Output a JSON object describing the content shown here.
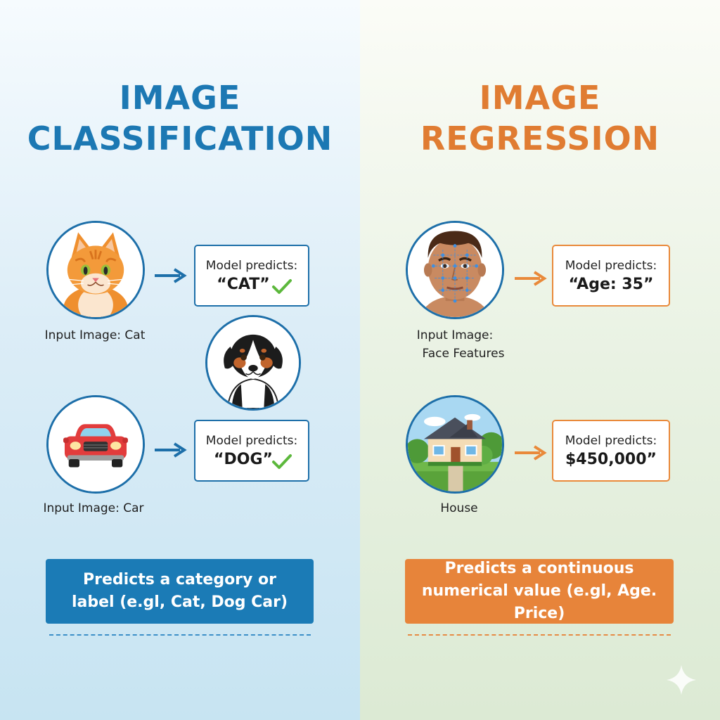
{
  "classification": {
    "title_line1": "IMAGE",
    "title_line2": "CLASSIFICATION",
    "example_cat": {
      "icon": "cat-icon",
      "caption": "Input Image: Cat",
      "predict_label": "Model predicts:",
      "predict_value": "“CAT”"
    },
    "example_dog": {
      "icon": "dog-icon"
    },
    "example_car": {
      "icon": "car-icon",
      "caption": "Input Image: Car",
      "predict_label": "Model predicts:",
      "predict_value": "“DOG”"
    },
    "summary_line1": "Predicts a category or",
    "summary_line2": "label (e.gl, Cat, Dog Car)"
  },
  "regression": {
    "title_line1": "IMAGE",
    "title_line2": "REGRESSION",
    "example_face": {
      "icon": "face-icon",
      "caption_line1": "Input Image:",
      "caption_line2": "Face Features",
      "predict_label": "Model predicts:",
      "predict_value": "“Age: 35”"
    },
    "example_house": {
      "icon": "house-icon",
      "caption": "House",
      "predict_label": "Model predicts:",
      "predict_value": "$450,000”"
    },
    "summary_line1": "Predicts a continuous",
    "summary_line2": "numerical value (e.gl, Age. Price)"
  },
  "colors": {
    "classification_accent": "#1c78b3",
    "regression_accent": "#e07c32",
    "check": "#5cb83c"
  }
}
